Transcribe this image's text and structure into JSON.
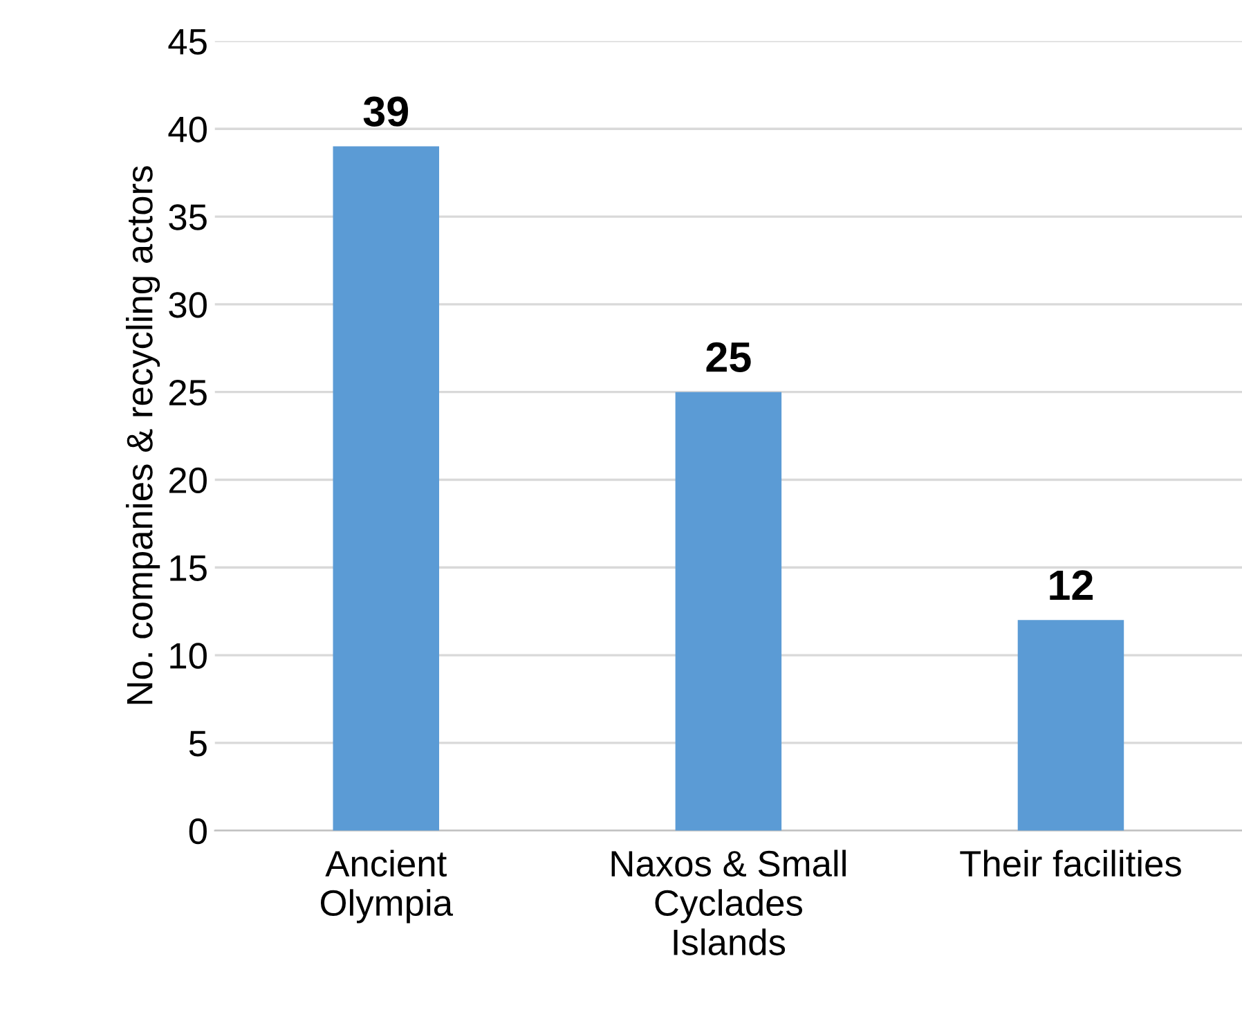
{
  "chart_data": {
    "type": "bar",
    "ylabel": "No. companies & recycling actors",
    "categories": [
      "Ancient\nOlympia",
      "Naxos & Small\nCyclades\nIslands",
      "Their facilities"
    ],
    "values": [
      39,
      25,
      12
    ],
    "color": "#5b9bd5",
    "ylim": [
      0,
      45
    ],
    "yticks": [
      0,
      5,
      10,
      15,
      20,
      25,
      30,
      35,
      40,
      45
    ],
    "grid": "y",
    "data_labels": true
  }
}
